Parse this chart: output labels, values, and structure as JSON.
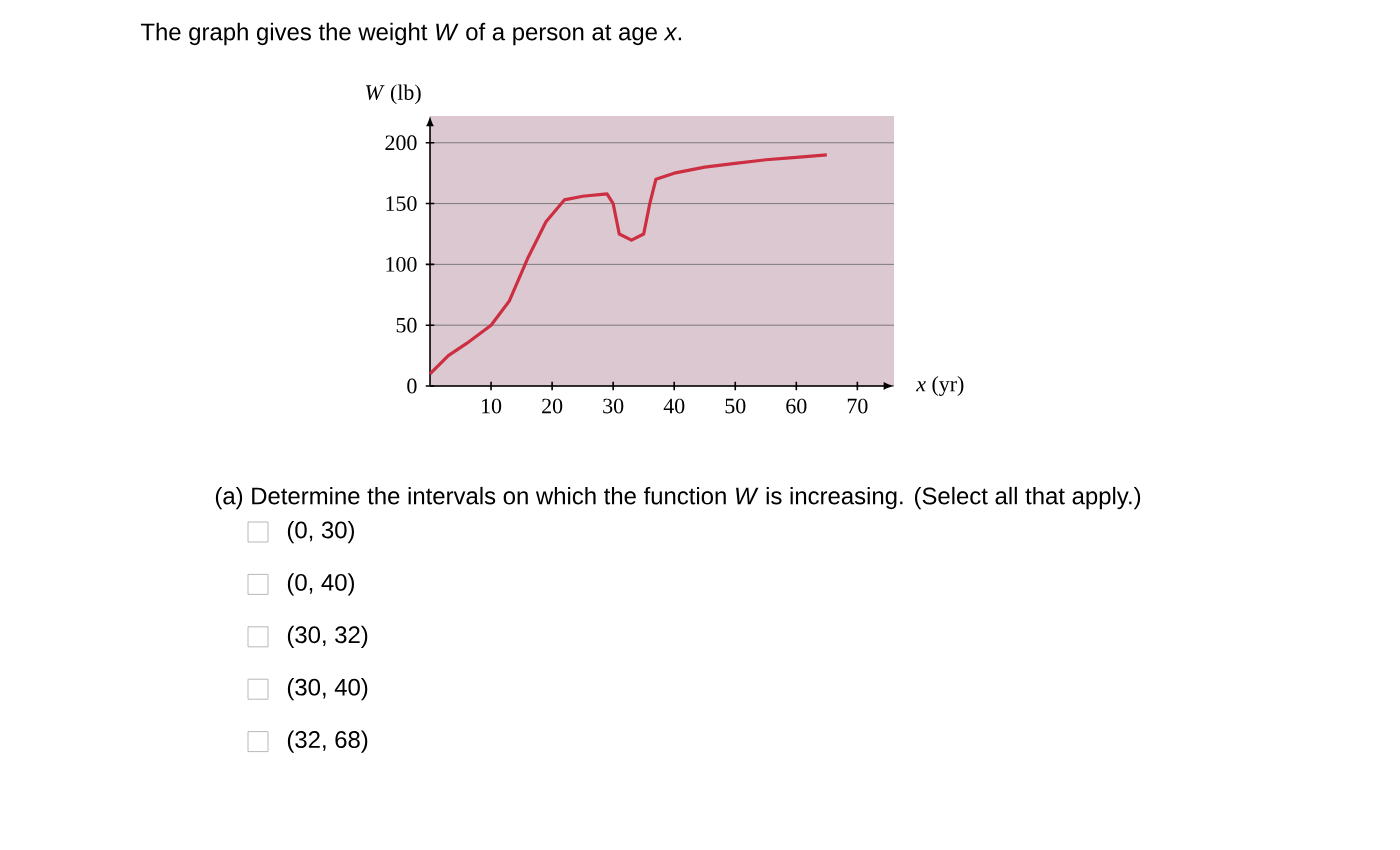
{
  "chart_data": {
    "type": "line",
    "title": "The graph gives the weight *W* of a person at age *x*.",
    "xlabel": "*x* (yr)",
    "ylabel": "*W* (lb)",
    "annotations": [
      "(a) Determine the intervals on which the function *W* is increasing. (Select all that apply.)",
      "(0, 30)",
      "(0, 40)",
      "(30, 32)",
      "(30, 40)",
      "(32, 68)"
    ],
    "x": [
      0,
      3,
      6,
      10,
      13,
      16,
      19,
      22,
      25,
      29,
      30,
      31,
      33,
      35,
      36,
      37,
      40,
      45,
      50,
      55,
      60,
      65
    ],
    "series": [
      {
        "color": "#cc2e42",
        "values": [
          10,
          25,
          35,
          50,
          70,
          105,
          135,
          153,
          156,
          158,
          150,
          125,
          120,
          125,
          150,
          170,
          175,
          180,
          183,
          186,
          188,
          190
        ]
      }
    ],
    "xlim": [
      0,
      76
    ],
    "ylim": [
      0,
      222
    ],
    "xticks": [
      10,
      20,
      30,
      40,
      50,
      60,
      70
    ],
    "yticks": [
      0,
      50,
      100,
      150,
      200
    ],
    "grid": "y"
  }
}
